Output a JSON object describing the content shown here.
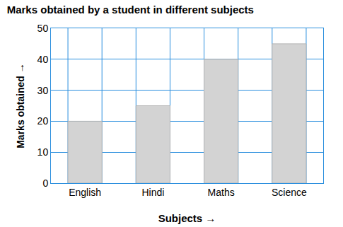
{
  "chart_data": {
    "type": "bar",
    "title": "Marks obtained by a student in different subjects",
    "xlabel": "Subjects →",
    "ylabel": "Marks obtained →",
    "categories": [
      "English",
      "Hindi",
      "Maths",
      "Science"
    ],
    "values": [
      20,
      25,
      40,
      45
    ],
    "color": "#d3d3d3",
    "ylim": [
      0,
      50
    ],
    "yticks": [
      0,
      10,
      20,
      30,
      40,
      50
    ],
    "grid": true
  }
}
